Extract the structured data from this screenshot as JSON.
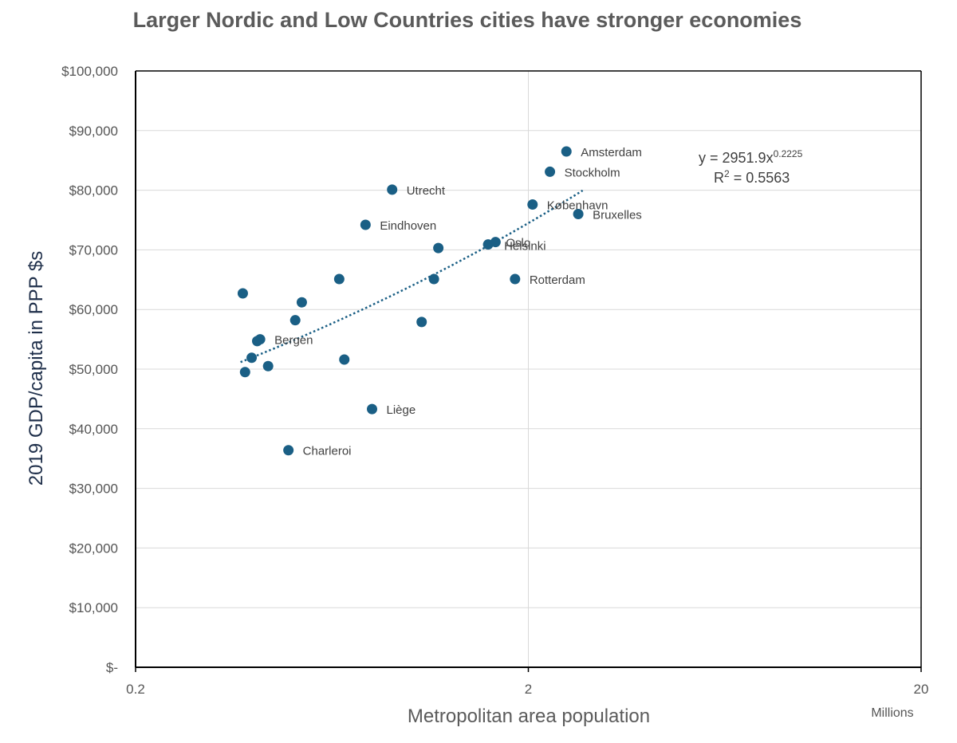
{
  "chart_data": {
    "type": "scatter",
    "title": "Larger Nordic and Low Countries cities have stronger economies",
    "xlabel": "Metropolitan area population",
    "xunits": "Millions",
    "ylabel": "2019 GDP/capita in PPP $s",
    "xscale": "log",
    "xlim": [
      0.2,
      20
    ],
    "ylim": [
      0,
      100000
    ],
    "xticks": [
      {
        "value": 0.2,
        "label": "0.2"
      },
      {
        "value": 2,
        "label": "2"
      },
      {
        "value": 20,
        "label": "20"
      }
    ],
    "yticks": [
      {
        "value": 100000,
        "label": "$100,000"
      },
      {
        "value": 90000,
        "label": "$90,000"
      },
      {
        "value": 80000,
        "label": "$80,000"
      },
      {
        "value": 70000,
        "label": "$70,000"
      },
      {
        "value": 60000,
        "label": "$60,000"
      },
      {
        "value": 50000,
        "label": "$50,000"
      },
      {
        "value": 40000,
        "label": "$40,000"
      },
      {
        "value": 30000,
        "label": "$30,000"
      },
      {
        "value": 20000,
        "label": "$20,000"
      },
      {
        "value": 10000,
        "label": "$10,000"
      },
      {
        "value": 0,
        "label": "$-"
      }
    ],
    "grid": true,
    "marker_color": "#1a5f85",
    "trendline": {
      "type": "power",
      "a": 2951.9,
      "b": 0.2225,
      "r2": 0.5563,
      "x_range": [
        0.37,
        2.75
      ],
      "color": "#1a5f85",
      "equation_text": "y = 2951.9x",
      "equation_exponent": "0.2225",
      "r2_text_prefix": "R",
      "r2_text_exp": "2",
      "r2_text_suffix": " = 0.5563"
    },
    "points": [
      {
        "label": "Amsterdam",
        "x": 2.5,
        "y": 86500
      },
      {
        "label": "Stockholm",
        "x": 2.27,
        "y": 83100
      },
      {
        "label": "Utrecht",
        "x": 0.9,
        "y": 80100
      },
      {
        "label": "København",
        "x": 2.05,
        "y": 77600
      },
      {
        "label": "Bruxelles",
        "x": 2.68,
        "y": 76000
      },
      {
        "label": "Eindhoven",
        "x": 0.77,
        "y": 74200
      },
      {
        "label": "",
        "x": 1.18,
        "y": 70300
      },
      {
        "label": "Oslo",
        "x": 1.65,
        "y": 71300
      },
      {
        "label": "Helsinki",
        "x": 1.58,
        "y": 70900
      },
      {
        "label": "",
        "x": 0.66,
        "y": 65100
      },
      {
        "label": "",
        "x": 1.15,
        "y": 65100
      },
      {
        "label": "Rotterdam",
        "x": 1.85,
        "y": 65100
      },
      {
        "label": "",
        "x": 0.375,
        "y": 62700
      },
      {
        "label": "",
        "x": 0.53,
        "y": 61200
      },
      {
        "label": "",
        "x": 0.51,
        "y": 58200
      },
      {
        "label": "",
        "x": 1.07,
        "y": 57900
      },
      {
        "label": "Bergen",
        "x": 0.415,
        "y": 55000
      },
      {
        "label": "",
        "x": 0.408,
        "y": 54700
      },
      {
        "label": "",
        "x": 0.395,
        "y": 51900
      },
      {
        "label": "",
        "x": 0.68,
        "y": 51600
      },
      {
        "label": "",
        "x": 0.435,
        "y": 50500
      },
      {
        "label": "",
        "x": 0.38,
        "y": 49500
      },
      {
        "label": "Liège",
        "x": 0.8,
        "y": 43300
      },
      {
        "label": "Charleroi",
        "x": 0.49,
        "y": 36400
      }
    ]
  }
}
